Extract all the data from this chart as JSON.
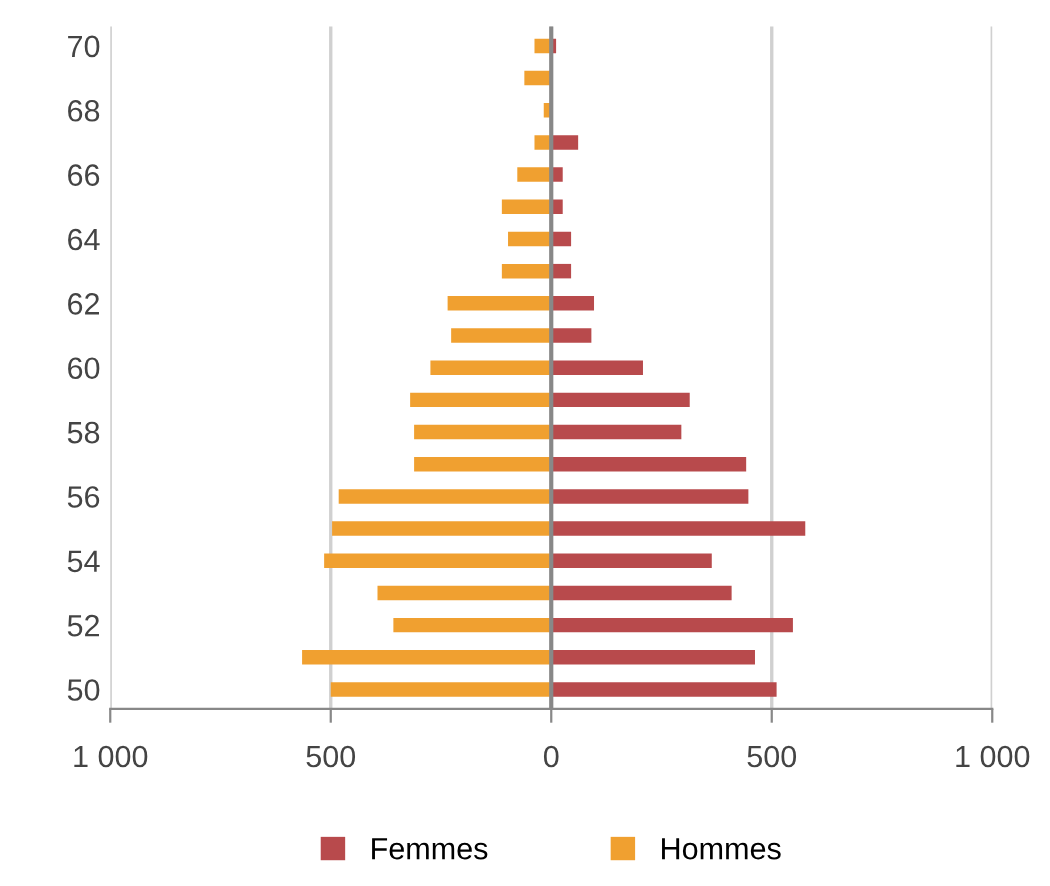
{
  "chart_data": {
    "type": "bar",
    "orientation": "horizontal",
    "categories": [
      "70",
      null,
      "68",
      null,
      "66",
      null,
      "64",
      null,
      "62",
      null,
      "60",
      null,
      "58",
      null,
      "56",
      null,
      "54",
      null,
      "52",
      null,
      "50"
    ],
    "series": [
      {
        "name": "Femmes",
        "color": "#b84a4c",
        "values": [
          11,
          3,
          2,
          61,
          26,
          26,
          45,
          45,
          97,
          91,
          208,
          314,
          295,
          442,
          447,
          576,
          364,
          409,
          548,
          462,
          511
        ]
      },
      {
        "name": "Hommes",
        "color": "#f0a030",
        "values": [
          -38,
          -61,
          -17,
          -38,
          -77,
          -112,
          -98,
          -112,
          -235,
          -227,
          -274,
          -320,
          -311,
          -311,
          -482,
          -497,
          -515,
          -394,
          -358,
          -565,
          -500
        ]
      }
    ],
    "xlim": [
      -1000,
      1000
    ],
    "xticks": [
      {
        "value": -1000,
        "label": "1 000"
      },
      {
        "value": -500,
        "label": "500"
      },
      0,
      500,
      {
        "value": 1000,
        "label": "1 000"
      }
    ],
    "stacked": true,
    "grid": "x",
    "legend": "bottom"
  }
}
